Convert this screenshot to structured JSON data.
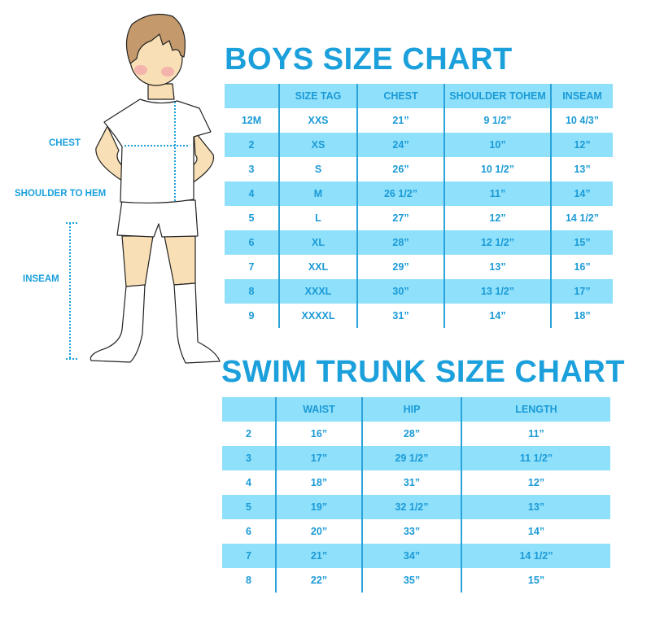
{
  "boys_chart": {
    "title": "BOYS SIZE CHART",
    "headers": [
      "",
      "SIZE TAG",
      "CHEST",
      "SHOULDER TOHEM",
      "INSEAM"
    ],
    "rows": [
      [
        "12M",
        "XXS",
        "21”",
        "9 1/2”",
        "10 4/3”"
      ],
      [
        "2",
        "XS",
        "24”",
        "10”",
        "12”"
      ],
      [
        "3",
        "S",
        "26”",
        "10 1/2”",
        "13”"
      ],
      [
        "4",
        "M",
        "26 1/2”",
        "11”",
        "14”"
      ],
      [
        "5",
        "L",
        "27”",
        "12”",
        "14 1/2”"
      ],
      [
        "6",
        "XL",
        "28”",
        "12 1/2”",
        "15”"
      ],
      [
        "7",
        "XXL",
        "29”",
        "13”",
        "16”"
      ],
      [
        "8",
        "XXXL",
        "30”",
        "13 1/2”",
        "17”"
      ],
      [
        "9",
        "XXXXL",
        "31”",
        "14”",
        "18”"
      ]
    ]
  },
  "swim_chart": {
    "title": "SWIM TRUNK SIZE CHART",
    "headers": [
      "",
      "WAIST",
      "HIP",
      "LENGTH"
    ],
    "rows": [
      [
        "2",
        "16”",
        "28”",
        "11”"
      ],
      [
        "3",
        "17”",
        "29 1/2”",
        "11 1/2”"
      ],
      [
        "4",
        "18”",
        "31”",
        "12”"
      ],
      [
        "5",
        "19”",
        "32 1/2”",
        "13”"
      ],
      [
        "6",
        "20”",
        "33”",
        "14”"
      ],
      [
        "7",
        "21”",
        "34”",
        "14 1/2”"
      ],
      [
        "8",
        "22”",
        "35”",
        "15”"
      ]
    ]
  },
  "figure_labels": {
    "chest": "CHEST",
    "shoulder_to_hem": "SHOULDER TO HEM",
    "inseam": "INSEAM"
  },
  "colors": {
    "accent_text": "#1ba0dc",
    "stripe": "#8fe0fb",
    "hair": "#c49a6c",
    "skin": "#f9dfb5"
  }
}
